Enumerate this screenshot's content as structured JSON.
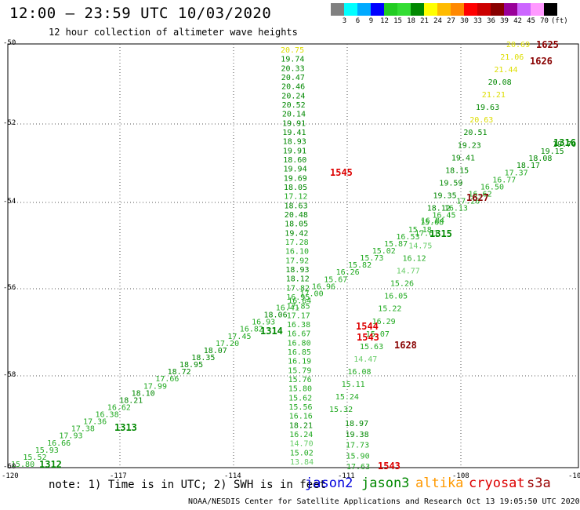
{
  "header": {
    "title": "12:00 — 23:59 UTC 10/03/2020",
    "subtitle": "12 hour collection of altimeter wave heights"
  },
  "color_scale": {
    "labels": [
      "3",
      "6",
      "9",
      "12",
      "15",
      "18",
      "21",
      "24",
      "27",
      "30",
      "33",
      "36",
      "39",
      "42",
      "45",
      "70",
      "(ft)"
    ],
    "colors": [
      "#808080",
      "#00ffff",
      "#00aaff",
      "#0000ff",
      "#22cc22",
      "#33dd33",
      "#008800",
      "#ffff00",
      "#ffbb00",
      "#ff8800",
      "#ff0000",
      "#cc0000",
      "#880000",
      "#990099",
      "#cc66ff",
      "#ff99ff",
      "#000000"
    ]
  },
  "footer": {
    "note": "note: 1) Time is in UTC; 2) SWH is in feet",
    "credit": "NOAA/NESDIS Center for Satellite Applications and Research   Oct 13 19:05:50 UTC 2020",
    "satellites": [
      {
        "name": "jason2",
        "color": "#0000dd"
      },
      {
        "name": "jason3",
        "color": "#008800"
      },
      {
        "name": "altika",
        "color": "#ff9900"
      },
      {
        "name": "cryosat",
        "color": "#dd0000"
      },
      {
        "name": "s3a",
        "color": "#990000"
      }
    ]
  },
  "map": {
    "lon_labels": [
      "-120",
      "-117",
      "-114",
      "-111",
      "-108",
      "-10"
    ],
    "lat_labels": [
      "-50",
      "-52",
      "-54",
      "-56",
      "-58",
      "-60"
    ],
    "time_labels": [
      {
        "text": "1625",
        "color": "#880000"
      },
      {
        "text": "1626",
        "color": "#880000"
      },
      {
        "text": "1316",
        "color": "#008800"
      },
      {
        "text": "1545",
        "color": "#dd0000"
      },
      {
        "text": "1627",
        "color": "#880000"
      },
      {
        "text": "1315",
        "color": "#008800"
      },
      {
        "text": "1314",
        "color": "#008800"
      },
      {
        "text": "1544",
        "color": "#dd0000"
      },
      {
        "text": "1543",
        "color": "#dd0000"
      },
      {
        "text": "1628",
        "color": "#880000"
      },
      {
        "text": "1313",
        "color": "#008800"
      },
      {
        "text": "1312",
        "color": "#008800"
      },
      {
        "text": "1543",
        "color": "#dd0000"
      }
    ],
    "track_vertical": [
      "20.75",
      "19.74",
      "20.33",
      "20.47",
      "20.46",
      "20.24",
      "20.52",
      "20.14",
      "19.91",
      "19.41",
      "18.93",
      "19.91",
      "18.60",
      "19.94",
      "19.69",
      "18.05",
      "17.12",
      "18.63",
      "20.48",
      "18.05",
      "19.42",
      "17.28",
      "16.10",
      "17.92",
      "18.93",
      "18.12",
      "17.82",
      "16.95",
      "17.85",
      "17.17",
      "16.38",
      "16.67",
      "16.80",
      "16.85",
      "16.19",
      "15.79",
      "15.76",
      "15.80",
      "15.62",
      "15.56",
      "16.16",
      "18.21",
      "16.24",
      "14.70",
      "15.02",
      "13.84"
    ],
    "track_vertical2": [
      "18.97",
      "19.38",
      "17.73",
      "15.90",
      "17.63"
    ],
    "track_ne": [
      "15.80",
      "15.52",
      "15.93",
      "16.66",
      "17.93",
      "17.38",
      "17.36",
      "16.38",
      "16.62",
      "18.21",
      "18.10",
      "17.99",
      "17.66",
      "18.72",
      "18.95",
      "18.35",
      "18.07",
      "17.20",
      "17.45",
      "16.82",
      "16.93",
      "18.06",
      "16.41",
      "16.64",
      "17.00",
      "16.96",
      "15.67",
      "16.26",
      "15.82",
      "15.73",
      "15.02",
      "15.87",
      "16.53",
      "15.18",
      "15.68",
      "16.45",
      "16.13",
      "17.26",
      "16.62",
      "16.50",
      "16.77",
      "17.37",
      "18.17",
      "18.08",
      "19.15",
      "19.70"
    ],
    "track_nw": [
      "20.69",
      "21.06",
      "21.44",
      "20.08",
      "21.21",
      "19.63",
      "20.63",
      "20.51",
      "19.23",
      "19.41",
      "18.15",
      "19.59",
      "19.35",
      "18.12",
      "16.84",
      "17.61",
      "14.75",
      "16.12",
      "14.77",
      "15.26",
      "16.05",
      "15.22",
      "16.29",
      "15.07",
      "15.63",
      "14.47",
      "16.08",
      "15.11",
      "15.24",
      "15.32"
    ]
  }
}
